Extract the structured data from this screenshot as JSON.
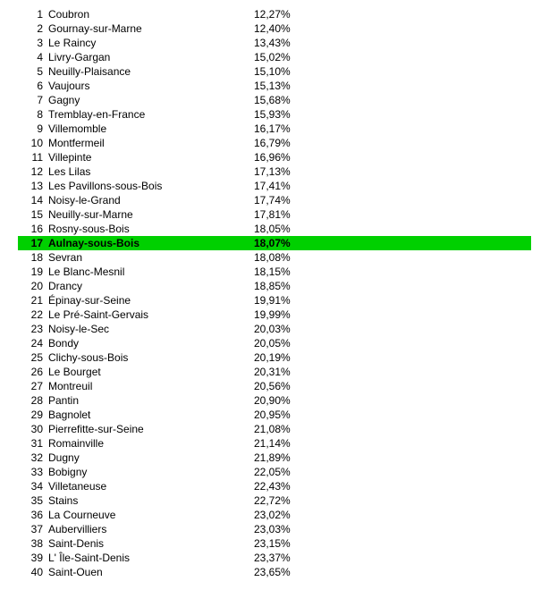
{
  "highlight_color": "#00d000",
  "highlight_index": 16,
  "rows": [
    {
      "rank": "1",
      "name": "Coubron",
      "pct": "12,27%"
    },
    {
      "rank": "2",
      "name": "Gournay-sur-Marne",
      "pct": "12,40%"
    },
    {
      "rank": "3",
      "name": "Le Raincy",
      "pct": "13,43%"
    },
    {
      "rank": "4",
      "name": "Livry-Gargan",
      "pct": "15,02%"
    },
    {
      "rank": "5",
      "name": "Neuilly-Plaisance",
      "pct": "15,10%"
    },
    {
      "rank": "6",
      "name": "Vaujours",
      "pct": "15,13%"
    },
    {
      "rank": "7",
      "name": "Gagny",
      "pct": "15,68%"
    },
    {
      "rank": "8",
      "name": "Tremblay-en-France",
      "pct": "15,93%"
    },
    {
      "rank": "9",
      "name": "Villemomble",
      "pct": "16,17%"
    },
    {
      "rank": "10",
      "name": "Montfermeil",
      "pct": "16,79%"
    },
    {
      "rank": "11",
      "name": "Villepinte",
      "pct": "16,96%"
    },
    {
      "rank": "12",
      "name": "Les Lilas",
      "pct": "17,13%"
    },
    {
      "rank": "13",
      "name": "Les Pavillons-sous-Bois",
      "pct": "17,41%"
    },
    {
      "rank": "14",
      "name": "Noisy-le-Grand",
      "pct": "17,74%"
    },
    {
      "rank": "15",
      "name": "Neuilly-sur-Marne",
      "pct": "17,81%"
    },
    {
      "rank": "16",
      "name": "Rosny-sous-Bois",
      "pct": "18,05%"
    },
    {
      "rank": "17",
      "name": "Aulnay-sous-Bois",
      "pct": "18,07%"
    },
    {
      "rank": "18",
      "name": "Sevran",
      "pct": "18,08%"
    },
    {
      "rank": "19",
      "name": "Le Blanc-Mesnil",
      "pct": "18,15%"
    },
    {
      "rank": "20",
      "name": "Drancy",
      "pct": "18,85%"
    },
    {
      "rank": "21",
      "name": "Épinay-sur-Seine",
      "pct": "19,91%"
    },
    {
      "rank": "22",
      "name": "Le Pré-Saint-Gervais",
      "pct": "19,99%"
    },
    {
      "rank": "23",
      "name": "Noisy-le-Sec",
      "pct": "20,03%"
    },
    {
      "rank": "24",
      "name": "Bondy",
      "pct": "20,05%"
    },
    {
      "rank": "25",
      "name": "Clichy-sous-Bois",
      "pct": "20,19%"
    },
    {
      "rank": "26",
      "name": "Le Bourget",
      "pct": "20,31%"
    },
    {
      "rank": "27",
      "name": "Montreuil",
      "pct": "20,56%"
    },
    {
      "rank": "28",
      "name": "Pantin",
      "pct": "20,90%"
    },
    {
      "rank": "29",
      "name": "Bagnolet",
      "pct": "20,95%"
    },
    {
      "rank": "30",
      "name": "Pierrefitte-sur-Seine",
      "pct": "21,08%"
    },
    {
      "rank": "31",
      "name": "Romainville",
      "pct": "21,14%"
    },
    {
      "rank": "32",
      "name": "Dugny",
      "pct": "21,89%"
    },
    {
      "rank": "33",
      "name": "Bobigny",
      "pct": "22,05%"
    },
    {
      "rank": "34",
      "name": "Villetaneuse",
      "pct": "22,43%"
    },
    {
      "rank": "35",
      "name": "Stains",
      "pct": "22,72%"
    },
    {
      "rank": "36",
      "name": "La Courneuve",
      "pct": "23,02%"
    },
    {
      "rank": "37",
      "name": "Aubervilliers",
      "pct": "23,03%"
    },
    {
      "rank": "38",
      "name": "Saint-Denis",
      "pct": "23,15%"
    },
    {
      "rank": "39",
      "name": "L' Île-Saint-Denis",
      "pct": "23,37%"
    },
    {
      "rank": "40",
      "name": "Saint-Ouen",
      "pct": "23,65%"
    }
  ]
}
